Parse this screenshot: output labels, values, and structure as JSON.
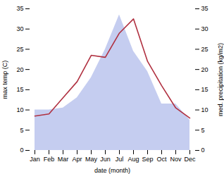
{
  "chart_data": {
    "type": "line",
    "categories": [
      "Jan",
      "Feb",
      "Mar",
      "Apr",
      "May",
      "Jun",
      "Jul",
      "Aug",
      "Sep",
      "Oct",
      "Nov",
      "Dec"
    ],
    "xlabel": "date (month)",
    "ylabel": "max temp (C)",
    "y2label": "med. precipitation (kg/m2)",
    "ylim": [
      0,
      35
    ],
    "yticks": [
      0,
      5,
      10,
      15,
      20,
      25,
      30,
      35
    ],
    "y2lim": [
      0,
      35
    ],
    "y2ticks": [
      0,
      5,
      10,
      15,
      20,
      25,
      30,
      35
    ],
    "grid": false,
    "series": [
      {
        "type": "area",
        "axis": "y2",
        "color": "#c5cdf0",
        "values": [
          10.0,
          10.0,
          10.5,
          13.0,
          18.0,
          25.0,
          33.5,
          24.5,
          19.5,
          11.5,
          11.5,
          7.5
        ]
      },
      {
        "type": "line",
        "axis": "y",
        "color": "#b03040",
        "values": [
          8.5,
          9.0,
          13.0,
          17.0,
          23.5,
          23.0,
          29.0,
          32.5,
          22.0,
          16.0,
          10.5,
          8.0
        ]
      }
    ]
  }
}
